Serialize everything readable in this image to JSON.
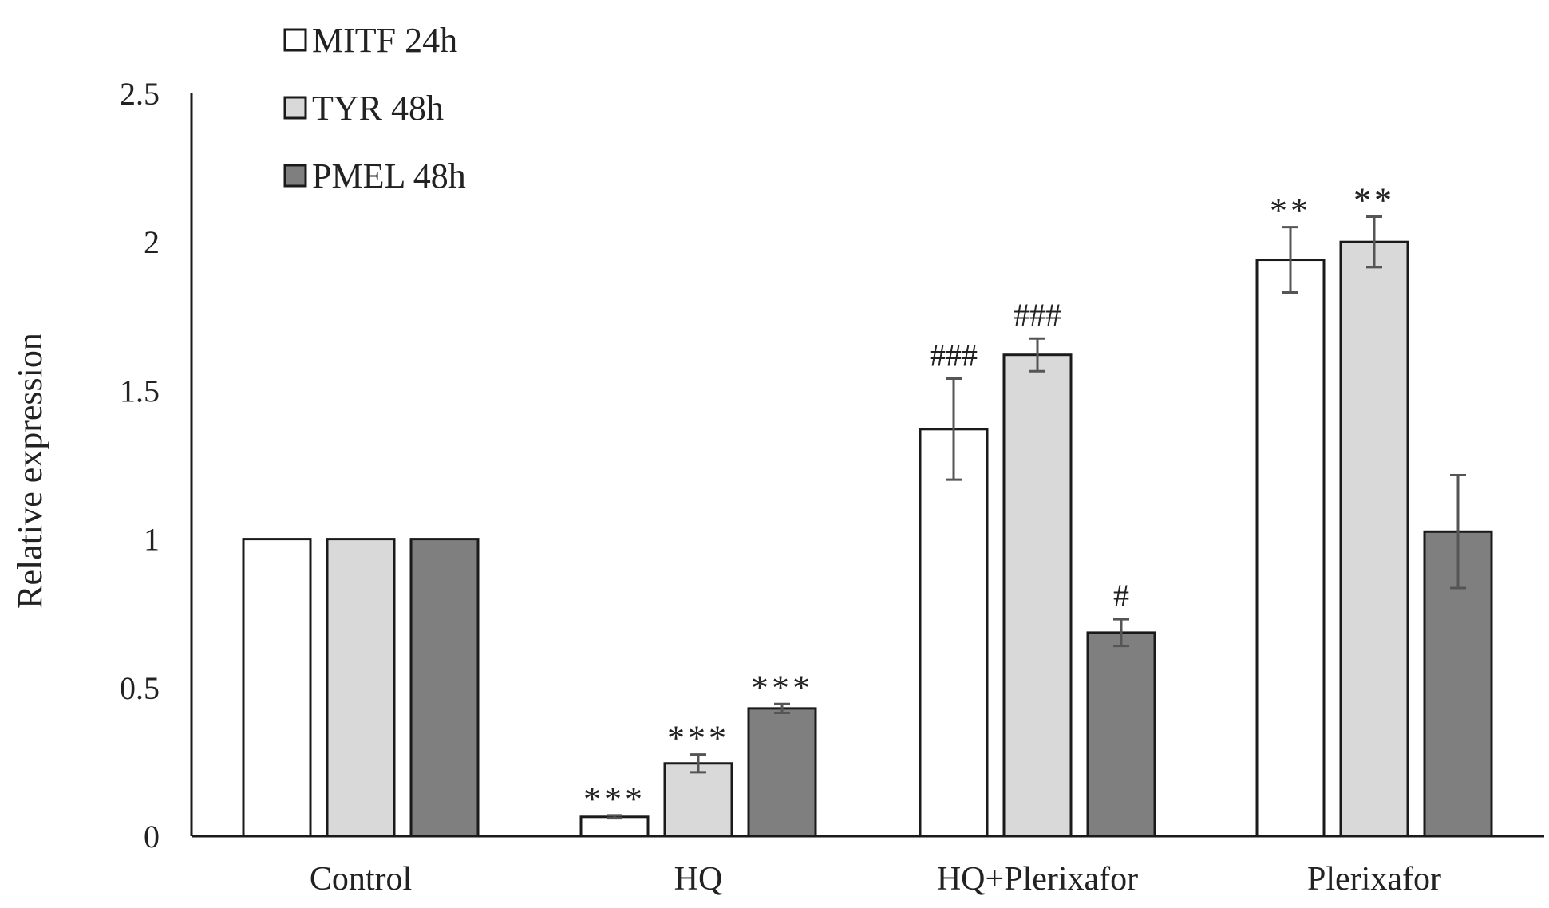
{
  "colors": {
    "MITF 24h": "#ffffff",
    "TYR 48h": "#d9d9d9",
    "PMEL 48h": "#7f7f7f",
    "edge": "#1a1a1a",
    "axis": "#1a1a1a",
    "errorbar": "#555555",
    "text": "#222222"
  },
  "chart_data": {
    "type": "bar",
    "title": "",
    "xlabel": "",
    "ylabel": "Relative expression",
    "ylim": [
      0,
      2.5
    ],
    "yticks": [
      0,
      0.5,
      1,
      1.5,
      2,
      2.5
    ],
    "ytick_labels": [
      "0",
      "0.5",
      "1",
      "1.5",
      "2",
      "2.5"
    ],
    "grid": false,
    "legend_position": "top-left",
    "categories": [
      "Control",
      "HQ",
      "HQ+Plerixafor",
      "Plerixafor"
    ],
    "series": [
      {
        "name": "MITF 24h",
        "values": [
          1.0,
          0.065,
          1.37,
          1.94
        ],
        "errors": [
          0,
          0.005,
          0.17,
          0.11
        ],
        "annotations": [
          "",
          "***",
          "###",
          "**"
        ]
      },
      {
        "name": "TYR 48h",
        "values": [
          1.0,
          0.245,
          1.62,
          2.0
        ],
        "errors": [
          0,
          0.03,
          0.055,
          0.085
        ],
        "annotations": [
          "",
          "***",
          "###",
          "**"
        ]
      },
      {
        "name": "PMEL 48h",
        "values": [
          1.0,
          0.43,
          0.685,
          1.025
        ],
        "errors": [
          0,
          0.015,
          0.045,
          0.19
        ],
        "annotations": [
          "",
          "***",
          "#",
          ""
        ]
      }
    ]
  }
}
